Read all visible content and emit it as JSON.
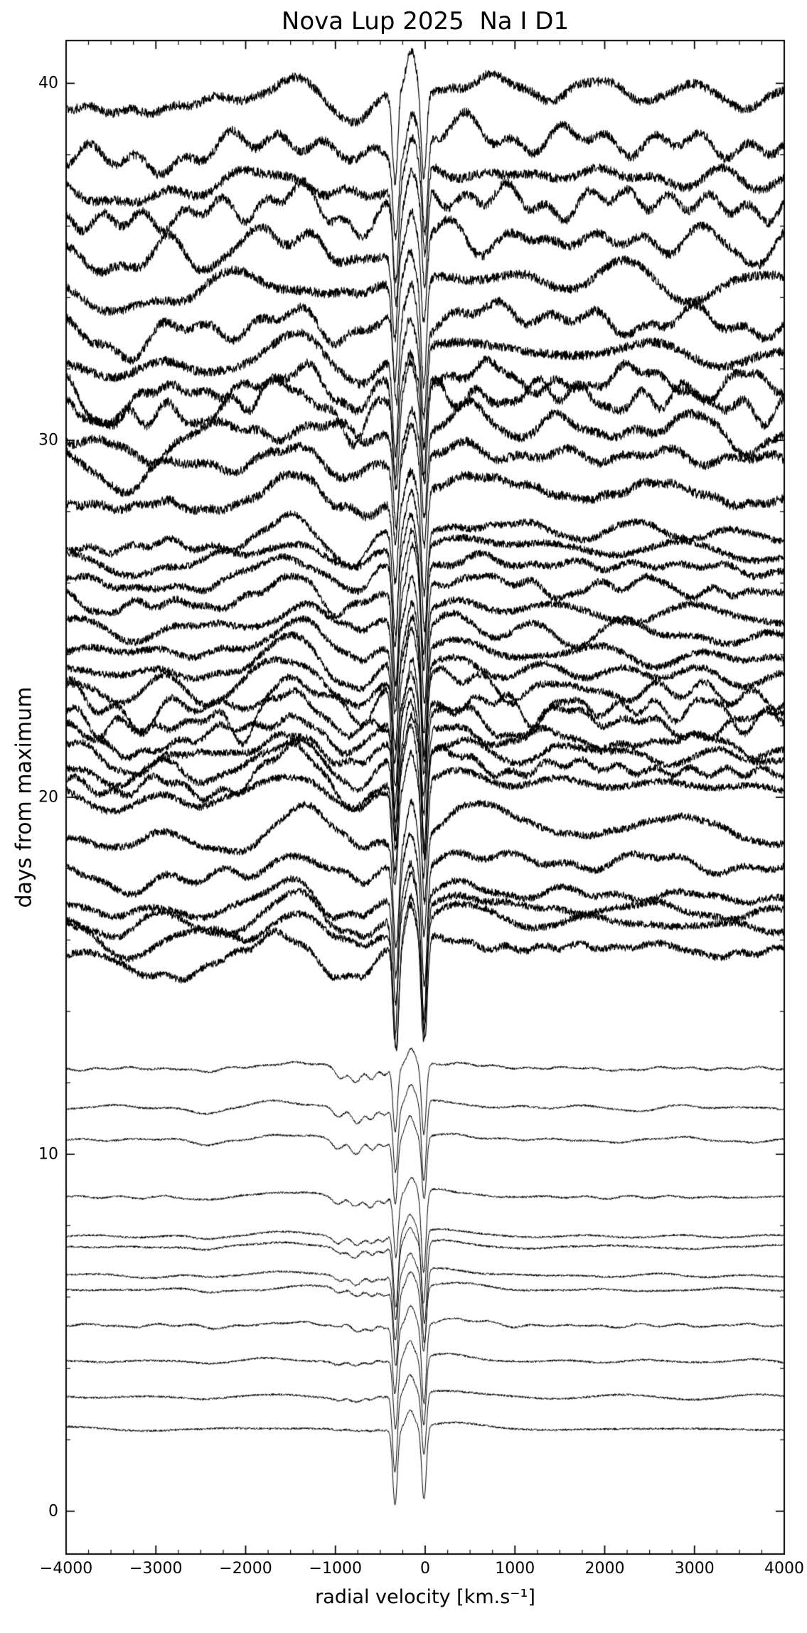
{
  "chart_data": {
    "type": "line",
    "title": "Nova Lup 2025  Na I D1",
    "xlabel": "radial velocity [km.s⁻¹]",
    "ylabel": "days from maximum",
    "xlim": [
      -4000,
      4000
    ],
    "ylim": [
      -1.2,
      41.2
    ],
    "grid": false,
    "legend": "none",
    "line_color": "#000000",
    "background_color": "#ffffff",
    "x_ticks": [
      {
        "v": -4000,
        "label": "−4000"
      },
      {
        "v": -3000,
        "label": "−3000"
      },
      {
        "v": -2000,
        "label": "−2000"
      },
      {
        "v": -1000,
        "label": "−1000"
      },
      {
        "v": 0,
        "label": "0"
      },
      {
        "v": 1000,
        "label": "1000"
      },
      {
        "v": 2000,
        "label": "2000"
      },
      {
        "v": 3000,
        "label": "3000"
      },
      {
        "v": 4000,
        "label": "4000"
      }
    ],
    "y_ticks": [
      {
        "v": 0,
        "label": "0"
      },
      {
        "v": 10,
        "label": "10"
      },
      {
        "v": 20,
        "label": "20"
      },
      {
        "v": 30,
        "label": "30"
      },
      {
        "v": 40,
        "label": "40"
      }
    ],
    "x_minor_step": 250,
    "y_minor_step": 2,
    "groups": {
      "A": {
        "noise": 0.03,
        "wiggle": 0.9,
        "lw": 1.0,
        "features": [
          [
            -960,
            55,
            -0.28
          ],
          [
            -770,
            60,
            -0.42
          ],
          [
            -600,
            45,
            -0.3
          ],
          [
            -460,
            40,
            -0.22
          ],
          [
            -2450,
            130,
            -0.12
          ],
          [
            -1500,
            350,
            0.15
          ],
          [
            250,
            300,
            0.18
          ],
          [
            -330,
            26,
            -1.9
          ],
          [
            -160,
            45,
            0.5
          ],
          [
            -15,
            26,
            -2.0
          ]
        ]
      },
      "B": {
        "noise": 0.1,
        "wiggle": 1.6,
        "lw": 1.2,
        "features": [
          [
            -3350,
            280,
            -0.5
          ],
          [
            -2550,
            200,
            -0.38
          ],
          [
            -2050,
            150,
            -0.22
          ],
          [
            -1450,
            280,
            0.5
          ],
          [
            -980,
            160,
            -0.5
          ],
          [
            -700,
            110,
            -0.45
          ],
          [
            -330,
            30,
            -3.0
          ],
          [
            -160,
            48,
            1.1
          ],
          [
            -10,
            30,
            -3.2
          ],
          [
            350,
            320,
            0.45
          ],
          [
            1600,
            700,
            0.2
          ],
          [
            2800,
            500,
            0.12
          ]
        ]
      },
      "C": {
        "noise": 0.13,
        "wiggle": 1.8,
        "lw": 1.2,
        "features": [
          [
            -3400,
            300,
            -0.5
          ],
          [
            -2600,
            220,
            -0.28
          ],
          [
            -1500,
            300,
            0.42
          ],
          [
            -1000,
            170,
            -0.42
          ],
          [
            -700,
            120,
            -0.38
          ],
          [
            -330,
            30,
            -2.5
          ],
          [
            -160,
            48,
            0.9
          ],
          [
            -10,
            30,
            -2.7
          ],
          [
            400,
            350,
            0.4
          ],
          [
            2000,
            800,
            0.22
          ]
        ]
      }
    },
    "spectra": [
      {
        "day": 2.3,
        "group": "A",
        "seed": 1,
        "sb": 0.15
      },
      {
        "day": 3.2,
        "group": "A",
        "seed": 2,
        "sb": 0.25
      },
      {
        "day": 4.2,
        "group": "A",
        "seed": 3,
        "sb": 0.35
      },
      {
        "day": 5.2,
        "group": "A",
        "seed": 4,
        "sb": 0.45
      },
      {
        "day": 6.2,
        "group": "A",
        "seed": 5,
        "sb": 0.55
      },
      {
        "day": 6.6,
        "group": "A",
        "seed": 6,
        "sb": 0.6
      },
      {
        "day": 7.4,
        "group": "A",
        "seed": 7,
        "sb": 0.65
      },
      {
        "day": 7.7,
        "group": "A",
        "seed": 8,
        "sb": 0.7
      },
      {
        "day": 8.8,
        "group": "A",
        "seed": 9,
        "sb": 0.8
      },
      {
        "day": 10.4,
        "group": "A",
        "seed": 10,
        "sb": 0.9
      },
      {
        "day": 11.3,
        "group": "A",
        "seed": 11,
        "sb": 0.95
      },
      {
        "day": 12.4,
        "group": "A",
        "seed": 12,
        "sb": 1.0
      },
      {
        "day": 15.6,
        "group": "B",
        "seed": 13
      },
      {
        "day": 16.3,
        "group": "B",
        "seed": 14
      },
      {
        "day": 16.7,
        "group": "B",
        "seed": 15
      },
      {
        "day": 17.1,
        "group": "B",
        "seed": 16
      },
      {
        "day": 18.0,
        "group": "B",
        "seed": 17
      },
      {
        "day": 19.0,
        "group": "B",
        "seed": 18
      },
      {
        "day": 20.2,
        "group": "B",
        "seed": 19
      },
      {
        "day": 20.6,
        "group": "B",
        "seed": 20
      },
      {
        "day": 21.0,
        "group": "B",
        "seed": 21
      },
      {
        "day": 21.4,
        "group": "B",
        "seed": 22
      },
      {
        "day": 21.9,
        "group": "B",
        "seed": 23
      },
      {
        "day": 22.3,
        "group": "B",
        "seed": 24
      },
      {
        "day": 22.8,
        "group": "B",
        "seed": 25
      },
      {
        "day": 23.3,
        "group": "B",
        "seed": 26
      },
      {
        "day": 23.8,
        "group": "B",
        "seed": 27
      },
      {
        "day": 24.4,
        "group": "B",
        "seed": 28
      },
      {
        "day": 25.0,
        "group": "B",
        "seed": 29
      },
      {
        "day": 25.7,
        "group": "B",
        "seed": 30
      },
      {
        "day": 26.3,
        "group": "B",
        "seed": 31
      },
      {
        "day": 26.8,
        "group": "B",
        "seed": 32
      },
      {
        "day": 27.3,
        "group": "B",
        "seed": 33
      },
      {
        "day": 28.4,
        "group": "C",
        "seed": 34
      },
      {
        "day": 29.4,
        "group": "C",
        "seed": 35
      },
      {
        "day": 30.2,
        "group": "C",
        "seed": 36
      },
      {
        "day": 31.0,
        "group": "C",
        "seed": 37
      },
      {
        "day": 31.5,
        "group": "C",
        "seed": 38
      },
      {
        "day": 32.3,
        "group": "C",
        "seed": 39
      },
      {
        "day": 33.2,
        "group": "C",
        "seed": 40
      },
      {
        "day": 34.3,
        "group": "C",
        "seed": 41
      },
      {
        "day": 35.4,
        "group": "C",
        "seed": 42
      },
      {
        "day": 36.5,
        "group": "C",
        "seed": 43
      },
      {
        "day": 37.2,
        "group": "C",
        "seed": 44
      },
      {
        "day": 38.2,
        "group": "C",
        "seed": 45
      },
      {
        "day": 39.6,
        "group": "C",
        "seed": 46
      }
    ]
  }
}
